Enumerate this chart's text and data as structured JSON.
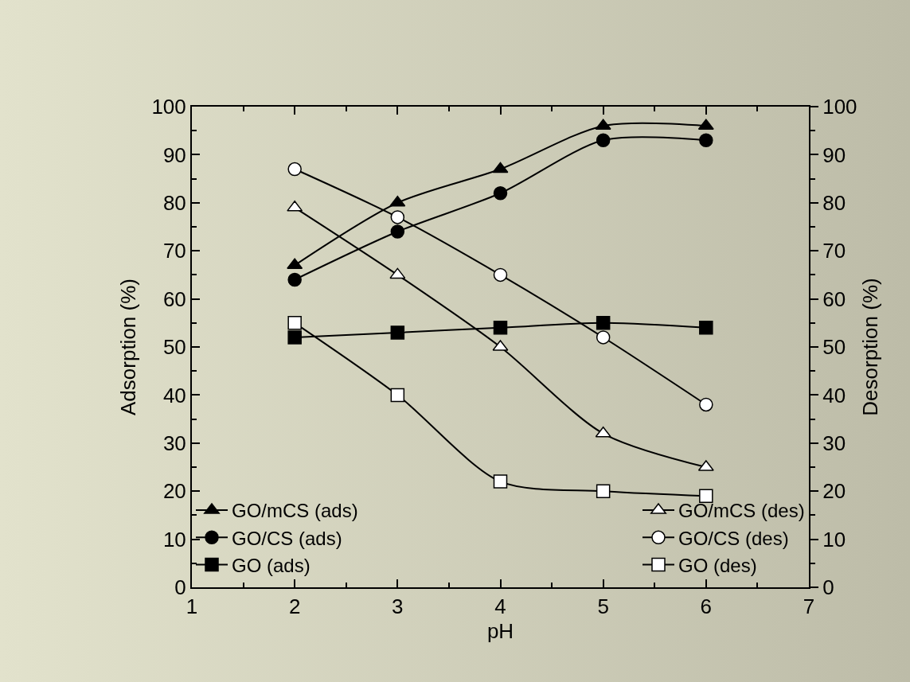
{
  "chart_data": {
    "type": "line",
    "xlabel": "pH",
    "ylabel": "Adsorption (%)",
    "y2label": "Desorption (%)",
    "x": [
      2,
      3,
      4,
      5,
      6
    ],
    "xlim": [
      1,
      7
    ],
    "xticks": [
      1,
      2,
      3,
      4,
      5,
      6,
      7
    ],
    "ylim": [
      0,
      100
    ],
    "yticks": [
      0,
      10,
      20,
      30,
      40,
      50,
      60,
      70,
      80,
      90,
      100
    ],
    "y2lim": [
      0,
      100
    ],
    "y2ticks": [
      0,
      10,
      20,
      30,
      40,
      50,
      60,
      70,
      80,
      90,
      100
    ],
    "grid": false,
    "legend": "bottom",
    "line_style": "solid",
    "series": [
      {
        "name": "GO/mCS (ads)",
        "color": "#000000",
        "marker": "triangle",
        "values": [
          67,
          80,
          87,
          96,
          96
        ]
      },
      {
        "name": "GO/CS (ads)",
        "color": "#000000",
        "marker": "circle",
        "values": [
          64,
          74,
          82,
          93,
          93
        ]
      },
      {
        "name": "GO (ads)",
        "color": "#000000",
        "marker": "square",
        "values": [
          52,
          53,
          54,
          55,
          54
        ]
      },
      {
        "name": "GO/mCS (des)",
        "color": "#ffffff",
        "marker": "triangle",
        "axis": "y2",
        "values": [
          79,
          65,
          50,
          32,
          25
        ]
      },
      {
        "name": "GO/CS (des)",
        "color": "#ffffff",
        "marker": "circle",
        "axis": "y2",
        "values": [
          87,
          77,
          65,
          52,
          38
        ]
      },
      {
        "name": "GO (des)",
        "color": "#ffffff",
        "marker": "square",
        "axis": "y2",
        "values": [
          55,
          40,
          22,
          20,
          19
        ]
      }
    ]
  }
}
